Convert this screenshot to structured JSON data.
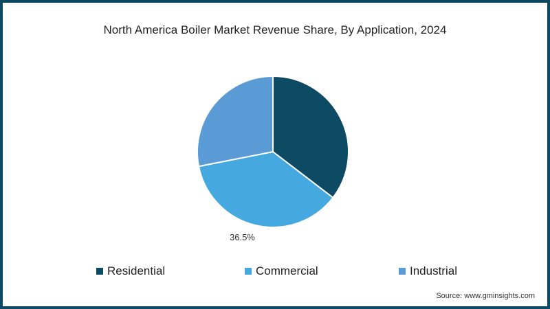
{
  "chart_data": {
    "type": "pie",
    "title": "North America Boiler Market Revenue Share, By Application, 2024",
    "categories": [
      "Residential",
      "Commercial",
      "Industrial"
    ],
    "values": [
      35.4,
      36.5,
      28.1
    ],
    "colors": [
      "#0d4a63",
      "#45a8df",
      "#5b9bd5"
    ],
    "labels": [
      null,
      "36.5%",
      null
    ],
    "legend_position": "bottom",
    "source": "Source: www.gminsights.com"
  },
  "title": "North America Boiler Market Revenue Share, By Application, 2024",
  "data_label": "36.5%",
  "legend": [
    {
      "label": "Residential",
      "color": "#0d4a63"
    },
    {
      "label": "Commercial",
      "color": "#45a8df"
    },
    {
      "label": "Industrial",
      "color": "#5b9bd5"
    }
  ],
  "source": "Source: www.gminsights.com"
}
